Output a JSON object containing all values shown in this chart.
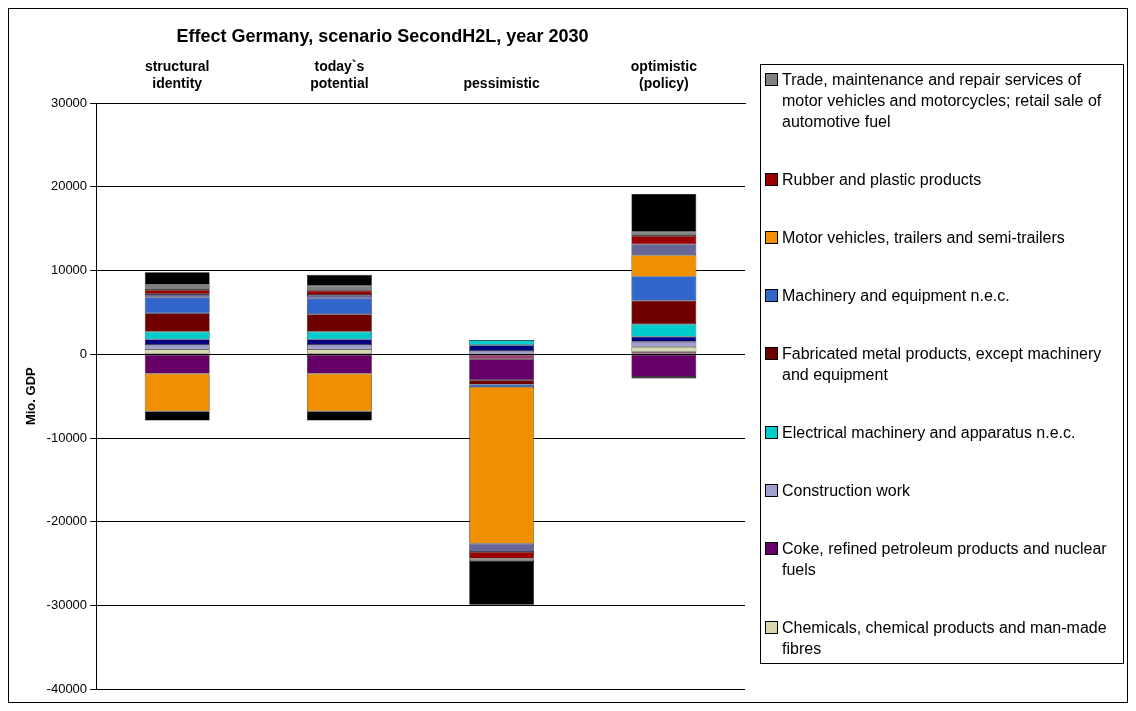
{
  "chart_data": {
    "type": "bar",
    "title": "Effect Germany, scenario SecondH2L, year 2030",
    "ylabel": "Mio. GDP",
    "categories": [
      "structural identity",
      "today`s potential",
      "pessimistic",
      "optimistic (policy)"
    ],
    "stacked": true,
    "ylim": [
      -40000,
      30000
    ],
    "yticks": [
      -40000,
      -30000,
      -20000,
      -10000,
      0,
      10000,
      20000,
      30000
    ],
    "grid": "y",
    "legend": "right",
    "series": [
      {
        "color": "#a04070",
        "values": [
          null,
          null,
          -600,
          300
        ]
      },
      {
        "name": "Chemicals, chemical products and man-made fibres",
        "color": "#d8d8b0",
        "values": [
          600,
          600,
          null,
          600
        ]
      },
      {
        "name": "Coke, refined petroleum products and nuclear fuels",
        "color": "#660066",
        "values": [
          -2300,
          -2300,
          -2500,
          -2700
        ]
      },
      {
        "name": "Construction work",
        "color": "#a0a0d0",
        "values": [
          500,
          500,
          400,
          600
        ]
      },
      {
        "color": "#000080",
        "values": [
          700,
          700,
          700,
          600
        ]
      },
      {
        "name": "Electrical machinery and apparatus n.e.c.",
        "color": "#00cccc",
        "values": [
          900,
          900,
          600,
          1500
        ]
      },
      {
        "name": "Fabricated metal products, except machinery and equipment",
        "color": "#700000",
        "values": [
          2200,
          2100,
          -500,
          2800
        ]
      },
      {
        "name": "Machinery and equipment n.e.c.",
        "color": "#3366cc",
        "values": [
          1900,
          1900,
          -300,
          2900
        ]
      },
      {
        "name": "Motor vehicles, trailers and semi-trailers",
        "color": "#f09000",
        "values": [
          -4500,
          -4500,
          -18700,
          2550
        ]
      },
      {
        "color": "#666699",
        "values": [
          400,
          400,
          -1000,
          1300
        ]
      },
      {
        "name": "Rubber and plastic products",
        "color": "#990000",
        "values": [
          500,
          500,
          -800,
          1000
        ]
      },
      {
        "name": "Trade, maintenance and repair services of motor vehicles and motorcycles; retail sale of automotive fuel",
        "color": "#808080",
        "values": [
          600,
          600,
          -300,
          500
        ]
      },
      {
        "color": "#000000",
        "values": [
          1500,
          1300,
          null,
          4500
        ]
      },
      {
        "color": "#000000",
        "values": [
          -1100,
          -1100,
          -5200,
          -200
        ]
      }
    ]
  }
}
